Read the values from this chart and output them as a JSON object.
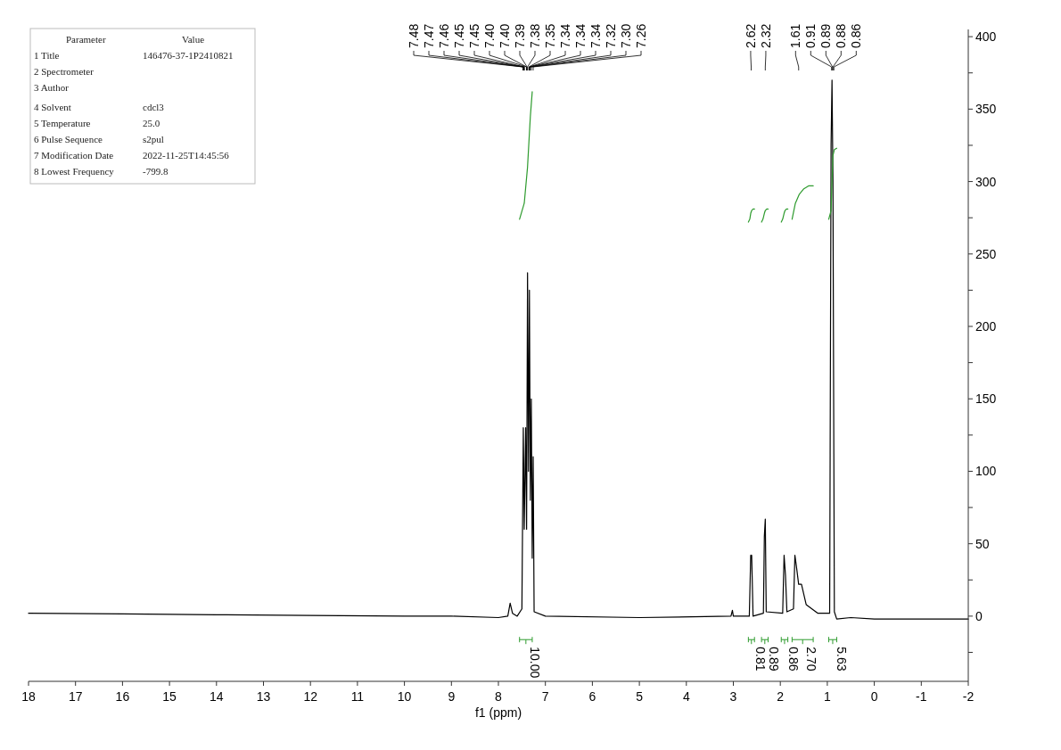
{
  "chart_data": [
    {
      "type": "line",
      "xlabel": "f1 (ppm)",
      "xlim": [
        18,
        -2
      ],
      "xticks": [
        18,
        17,
        16,
        15,
        14,
        13,
        12,
        11,
        10,
        9,
        8,
        7,
        6,
        5,
        4,
        3,
        2,
        1,
        0,
        -1,
        -2
      ],
      "ylim": [
        -45,
        405
      ],
      "yticks": [
        {
          "value": -25,
          "label": null
        },
        0,
        {
          "value": 25,
          "label": null
        },
        50,
        {
          "value": 75,
          "label": null
        },
        100,
        {
          "value": 125,
          "label": null
        },
        150,
        {
          "value": 175,
          "label": null
        },
        200,
        {
          "value": 225,
          "label": null
        },
        250,
        {
          "value": 275,
          "label": null
        },
        300,
        {
          "value": 325,
          "label": null
        },
        350,
        {
          "value": 375,
          "label": null
        },
        400
      ],
      "series": [
        {
          "color": "#000000",
          "x": [
            18,
            16,
            14,
            12,
            10,
            9,
            8,
            7.8,
            7.75,
            7.7,
            7.6,
            7.5,
            7.47,
            7.45,
            7.42,
            7.4,
            7.38,
            7.36,
            7.34,
            7.32,
            7.3,
            7.28,
            7.26,
            7.24,
            7,
            5,
            3.05,
            3.02,
            3,
            2.66,
            2.63,
            2.61,
            2.58,
            2.36,
            2.34,
            2.32,
            2.3,
            1.95,
            1.92,
            1.89,
            1.86,
            1.72,
            1.69,
            1.66,
            1.61,
            1.55,
            1.45,
            1.2,
            0.95,
            0.92,
            0.9,
            0.88,
            0.85,
            0.8,
            0.5,
            0,
            -1,
            -2
          ],
          "values": [
            2,
            1.5,
            1,
            0.5,
            0,
            0,
            -1,
            0,
            9,
            2,
            0,
            5,
            130,
            60,
            130,
            60,
            237,
            100,
            225,
            80,
            150,
            40,
            110,
            3,
            0,
            -1,
            0,
            4,
            0,
            0,
            42,
            42,
            0,
            2,
            55,
            67,
            3,
            2,
            42,
            28,
            3,
            5,
            42,
            35,
            22,
            22,
            8,
            2,
            2,
            325,
            370,
            300,
            3,
            -2,
            -1,
            -2,
            -2,
            -2
          ]
        },
        {
          "color": "#2e9b2e",
          "x": [
            7.55,
            7.45,
            7.38,
            7.32,
            7.28
          ],
          "values": [
            274,
            285,
            310,
            345,
            362
          ]
        },
        {
          "color": "#2e9b2e",
          "x": [
            2.68,
            2.65,
            2.63,
            2.61,
            2.58,
            2.55
          ],
          "values": [
            272,
            274,
            278,
            280,
            281,
            281
          ]
        },
        {
          "color": "#2e9b2e",
          "x": [
            2.4,
            2.37,
            2.34,
            2.32,
            2.29,
            2.26
          ],
          "values": [
            272,
            274,
            278,
            280,
            281,
            281
          ]
        },
        {
          "color": "#2e9b2e",
          "x": [
            1.98,
            1.95,
            1.92,
            1.9,
            1.87,
            1.84
          ],
          "values": [
            272,
            274,
            278,
            280,
            281,
            281
          ]
        },
        {
          "color": "#2e9b2e",
          "x": [
            1.75,
            1.68,
            1.6,
            1.5,
            1.4,
            1.3
          ],
          "values": [
            274,
            285,
            291,
            295,
            297,
            297
          ]
        },
        {
          "color": "#2e9b2e",
          "x": [
            0.97,
            0.92,
            0.9,
            0.88,
            0.85,
            0.8
          ],
          "values": [
            274,
            280,
            300,
            318,
            322,
            323
          ]
        }
      ],
      "annotations": [
        "10.00",
        "0.81",
        "0.89",
        "0.86",
        "2.70",
        "5.63",
        {
          "text": "7.48",
          "x": 7.48
        },
        {
          "text": "7.47",
          "x": 7.47
        },
        {
          "text": "7.46",
          "x": 7.46
        },
        {
          "text": "7.45",
          "x": 7.45
        },
        {
          "text": "7.45",
          "x": 7.45
        },
        {
          "text": "7.40",
          "x": 7.4
        },
        {
          "text": "7.40",
          "x": 7.4
        },
        {
          "text": "7.39",
          "x": 7.39
        },
        {
          "text": "7.38",
          "x": 7.38
        },
        {
          "text": "7.35",
          "x": 7.35
        },
        {
          "text": "7.34",
          "x": 7.34
        },
        {
          "text": "7.34",
          "x": 7.34
        },
        {
          "text": "7.34",
          "x": 7.34
        },
        {
          "text": "7.32",
          "x": 7.32
        },
        {
          "text": "7.30",
          "x": 7.3
        },
        {
          "text": "7.26",
          "x": 7.26
        },
        {
          "text": "2.62",
          "x": 2.62
        },
        {
          "text": "2.32",
          "x": 2.32
        },
        {
          "text": "1.61",
          "x": 1.61
        },
        {
          "text": "0.91",
          "x": 0.91
        },
        {
          "text": "0.89",
          "x": 0.89
        },
        {
          "text": "0.88",
          "x": 0.88
        },
        {
          "text": "0.86",
          "x": 0.86
        }
      ]
    },
    {
      "type": "other",
      "annotations": [
        "Parameter\tValue",
        "1 Title\t146476-37-1P2410821",
        "2 Spectrometer\t",
        "3 Author\t",
        "4 Solvent\tcdcl3",
        "5 Temperature\t25.0",
        "6 Pulse Sequence\ts2pul",
        "7 Modification Date\t2022-11-25T14:45:56",
        "8 Lowest Frequency\t-799.8"
      ]
    }
  ]
}
